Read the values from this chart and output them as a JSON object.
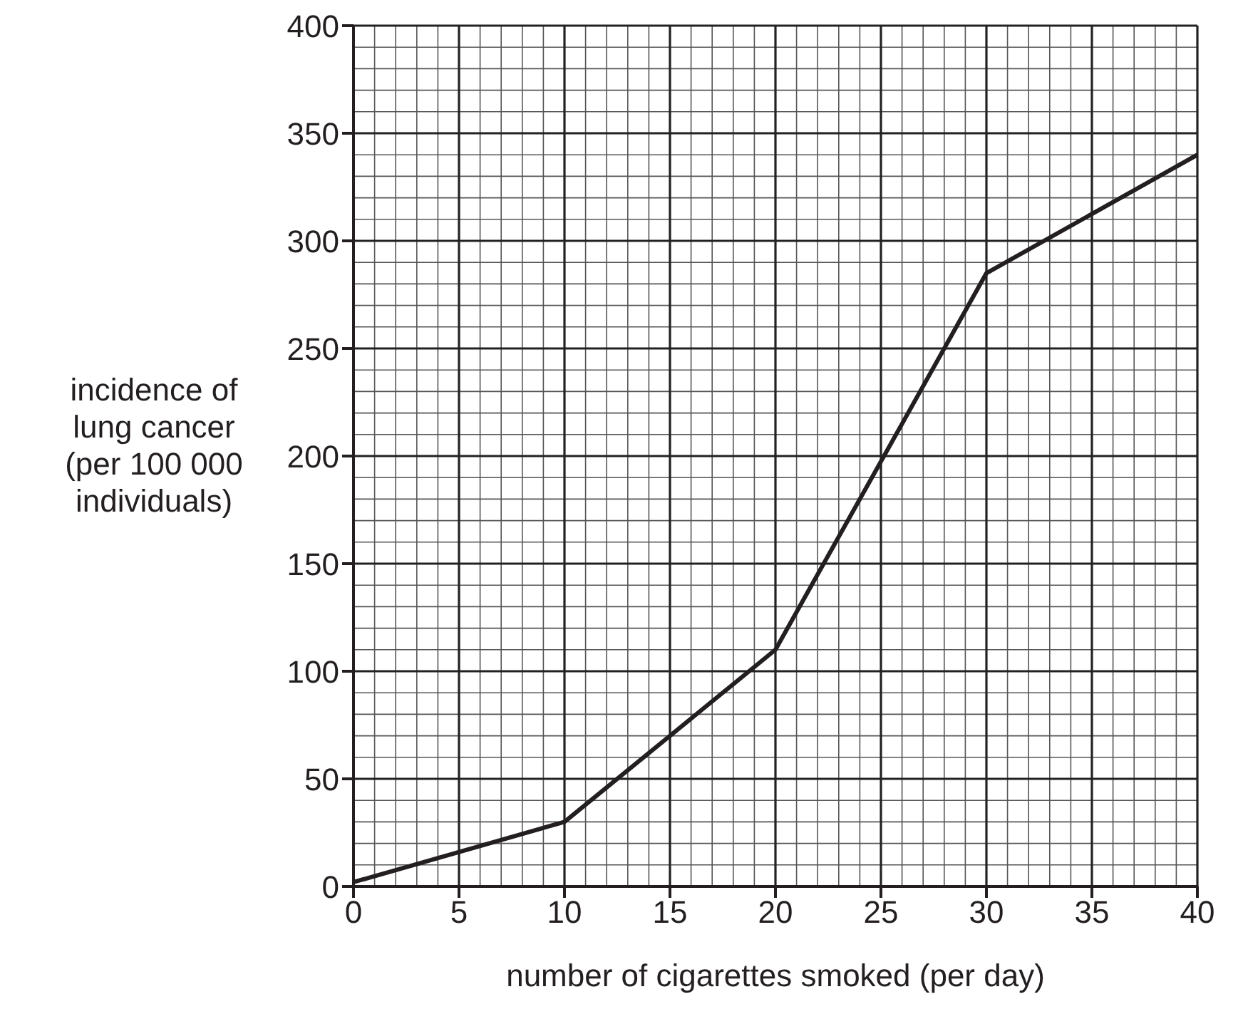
{
  "chart_data": {
    "type": "line",
    "xlabel": "number of cigarettes smoked (per day)",
    "ylabel": "incidence of lung cancer (per 100 000 individuals)",
    "x": [
      0,
      10,
      20,
      30,
      40
    ],
    "series": [
      {
        "color": "#231f20",
        "values": [
          2,
          30,
          110,
          285,
          340
        ]
      }
    ],
    "xlim": [
      0,
      40
    ],
    "xticks": [
      0,
      5,
      10,
      15,
      20,
      25,
      30,
      35,
      40
    ],
    "ylim": [
      0,
      400
    ],
    "yticks": [
      0,
      50,
      100,
      150,
      200,
      250,
      300,
      350,
      400
    ],
    "grid": true,
    "marker": "none",
    "line_style": "solid"
  }
}
